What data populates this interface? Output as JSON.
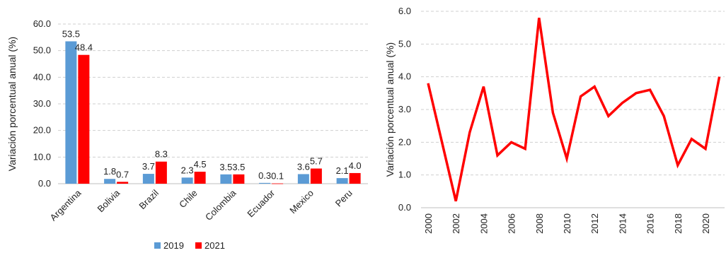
{
  "chart_data": [
    {
      "type": "bar",
      "categories": [
        "Argentina",
        "Bolivia",
        "Brazil",
        "Chile",
        "Colombia",
        "Ecuador",
        "Mexico",
        "Peru"
      ],
      "series": [
        {
          "name": "2019",
          "color": "#5b9bd5",
          "values": [
            53.5,
            1.8,
            3.7,
            2.3,
            3.5,
            0.3,
            3.6,
            2.1
          ],
          "labels": [
            "53.5",
            "1.8",
            "3.7",
            "2.3",
            "3.5",
            "0.3",
            "3.6",
            "2.1"
          ]
        },
        {
          "name": "2021",
          "color": "#ff0000",
          "values": [
            48.4,
            0.7,
            8.3,
            4.5,
            3.5,
            0.1,
            5.7,
            4.0
          ],
          "labels": [
            "48.4",
            "0.7",
            "8.3",
            "4.5",
            "3.5",
            "0.1",
            "5.7",
            "4.0"
          ]
        }
      ],
      "ylabel": "Variación porcentual anual (%)",
      "ylim": [
        0,
        60
      ],
      "yticks": [
        "0.0",
        "10.0",
        "20.0",
        "30.0",
        "40.0",
        "50.0",
        "60.0"
      ],
      "grid": true,
      "legend": "bottom-center"
    },
    {
      "type": "line",
      "x": [
        2000,
        2001,
        2002,
        2003,
        2004,
        2005,
        2006,
        2007,
        2008,
        2009,
        2010,
        2011,
        2012,
        2013,
        2014,
        2015,
        2016,
        2017,
        2018,
        2019,
        2020,
        2021
      ],
      "series": [
        {
          "color": "#ff0000",
          "values": [
            3.8,
            2.0,
            0.2,
            2.3,
            3.7,
            1.6,
            2.0,
            1.8,
            5.8,
            2.9,
            1.5,
            3.4,
            3.7,
            2.8,
            3.2,
            3.5,
            3.6,
            2.8,
            1.3,
            2.1,
            1.8,
            4.0
          ]
        }
      ],
      "xticks": [
        "2000",
        "2002",
        "2004",
        "2006",
        "2008",
        "2010",
        "2012",
        "2014",
        "2016",
        "2018",
        "2020"
      ],
      "ylabel": "Variación porcentual anual (%)",
      "ylim": [
        0,
        6
      ],
      "yticks": [
        "0.0",
        "1.0",
        "2.0",
        "3.0",
        "4.0",
        "5.0",
        "6.0"
      ],
      "grid": true
    }
  ]
}
